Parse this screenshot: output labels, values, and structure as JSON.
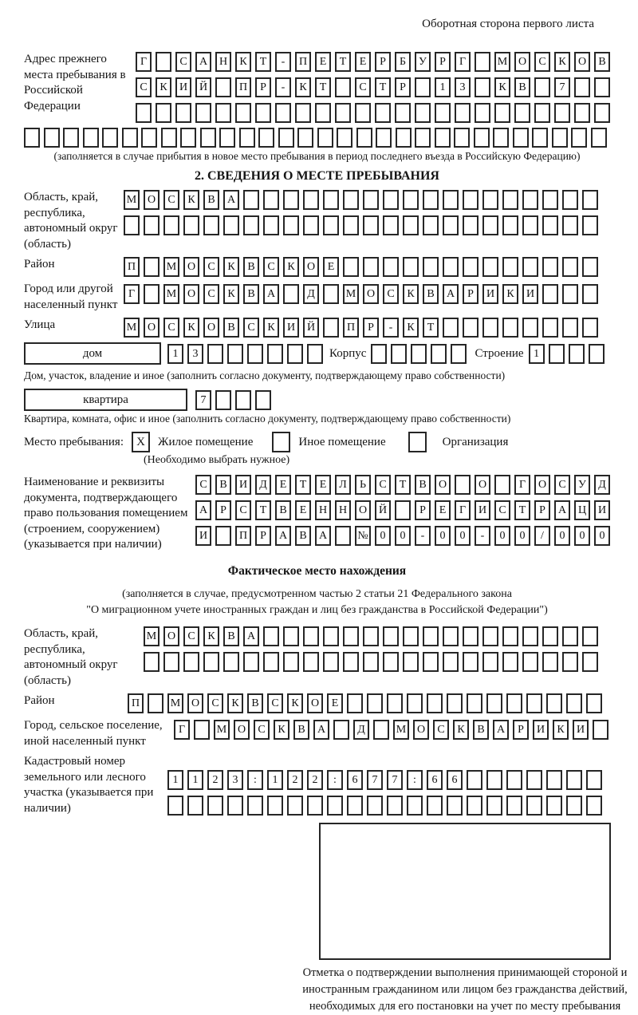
{
  "header": {
    "note": "Оборотная сторона первого листа"
  },
  "prev_address": {
    "label": "Адрес прежнего места пребывания в Российской Федерации",
    "row1": {
      "chars": "Г САНКТ-ПЕТЕРБУРГ МОСКОВ",
      "boxes": 24
    },
    "row2": {
      "chars": "СКИЙ ПР-КТ СТР 13 КВ 7",
      "boxes": 24
    },
    "row3": {
      "chars": "",
      "boxes": 24
    },
    "row4": {
      "chars": "",
      "boxes": 30
    },
    "note": "(заполняется в случае прибытия в новое место пребывания в период последнего въезда в Российскую Федерацию)"
  },
  "section2": {
    "title": "2. СВЕДЕНИЯ О МЕСТЕ ПРЕБЫВАНИЯ",
    "region": {
      "label": "Область, край, республика, автономный округ (область)",
      "row1": {
        "chars": "МОСКВА",
        "boxes": 24
      },
      "row2": {
        "chars": "",
        "boxes": 24
      }
    },
    "district": {
      "label": "Район",
      "row": {
        "chars": "П МОСКВСКОЕ",
        "boxes": 24
      }
    },
    "city": {
      "label": "Город или другой населенный пункт",
      "row": {
        "chars": "Г МОСКВА Д МОСКВАРИКИ",
        "boxes": 24
      }
    },
    "street": {
      "label": "Улица",
      "row": {
        "chars": "МОСКОВСКИЙ ПР-КТ",
        "boxes": 24
      }
    },
    "house": {
      "label": "дом",
      "row": {
        "chars": "13",
        "boxes": 8
      },
      "korpus_label": "Корпус",
      "korpus_row": {
        "chars": "",
        "boxes": 5
      },
      "stroenie_label": "Строение",
      "stroenie_row": {
        "chars": "1",
        "boxes": 4
      },
      "note": "Дом, участок, владение и иное (заполнить согласно документу, подтверждающему право собственности)"
    },
    "apartment": {
      "label": "квартира",
      "row": {
        "chars": "7",
        "boxes": 4
      },
      "note": "Квартира, комната, офис и иное (заполнить согласно документу, подтверждающему право собственности)"
    },
    "stay_type": {
      "label": "Место пребывания:",
      "options": [
        {
          "label": "Жилое помещение",
          "checked": "X"
        },
        {
          "label": "Иное помещение",
          "checked": ""
        },
        {
          "label": "Организация",
          "checked": ""
        }
      ],
      "note": "(Необходимо выбрать нужное)"
    },
    "document": {
      "label": "Наименование и реквизиты документа, подтверждающего право пользования помещением (строением, сооружением) (указывается при наличии)",
      "row1": {
        "chars": "СВИДЕТЕЛЬСТВО О ГОСУД",
        "boxes": 21
      },
      "row2": {
        "chars": "АРСТВЕННОЙ РЕГИСТРАЦИ",
        "boxes": 21
      },
      "row3": {
        "chars": "И ПРАВА №00-00-00/000",
        "boxes": 21
      }
    }
  },
  "actual_location": {
    "title": "Фактическое место нахождения",
    "note1": "(заполняется в случае, предусмотренном частью 2 статьи 21 Федерального закона",
    "note2": "\"О миграционном учете иностранных граждан и лиц без гражданства в Российской Федерации\")",
    "region": {
      "label": "Область, край, республика, автономный округ (область)",
      "row1": {
        "chars": "МОСКВА",
        "boxes": 23
      },
      "row2": {
        "chars": "",
        "boxes": 23
      }
    },
    "district": {
      "label": "Район",
      "row": {
        "chars": "П МОСКВСКОЕ",
        "boxes": 24
      }
    },
    "city": {
      "label": "Город, сельское поселение, иной населенный пункт",
      "row": {
        "chars": "Г МОСКВА Д МОСКВАРИКИ",
        "boxes": 22
      }
    },
    "cadastral": {
      "label": "Кадастровый номер земельного или лесного участка (указывается при наличии)",
      "row1": {
        "chars": "1123:122:677:66",
        "boxes": 22
      },
      "row2": {
        "chars": "",
        "boxes": 22
      }
    }
  },
  "confirmation": {
    "caption": "Отметка о подтверждении выполнения принимающей стороной и иностранным гражданином или лицом без гражданства действий, необходимых для его постановки на учет по месту пребывания"
  }
}
